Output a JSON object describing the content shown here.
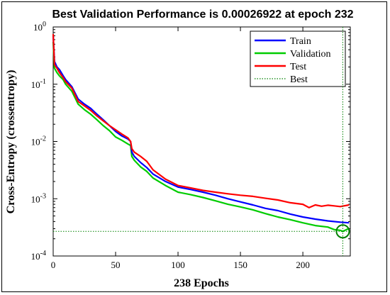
{
  "chart_data": {
    "type": "line",
    "title": "Best Validation Performance is 0.00026922 at epoch 232",
    "xlabel": "238 Epochs",
    "ylabel": "Cross-Entropy  (crossentropy)",
    "xlim": [
      0,
      238
    ],
    "ylim": [
      0.0001,
      1
    ],
    "yscale": "log",
    "grid": false,
    "legend_position": "top-right",
    "x_ticks": [
      {
        "value": 0,
        "label": "0"
      },
      {
        "value": 50,
        "label": "50"
      },
      {
        "value": 100,
        "label": "100"
      },
      {
        "value": 150,
        "label": "150"
      },
      {
        "value": 200,
        "label": "200"
      }
    ],
    "y_ticks": [
      {
        "value": 0.0001,
        "base": "10",
        "exp": "-4"
      },
      {
        "value": 0.001,
        "base": "10",
        "exp": "-3"
      },
      {
        "value": 0.01,
        "base": "10",
        "exp": "-2"
      },
      {
        "value": 0.1,
        "base": "10",
        "exp": "-1"
      },
      {
        "value": 1,
        "base": "10",
        "exp": "0"
      }
    ],
    "series": [
      {
        "name": "Train",
        "color": "#0000ff",
        "x": [
          0,
          1,
          3,
          5,
          8,
          10,
          15,
          20,
          25,
          30,
          35,
          40,
          45,
          50,
          55,
          60,
          62,
          63,
          65,
          70,
          75,
          80,
          90,
          100,
          110,
          120,
          130,
          140,
          150,
          160,
          170,
          180,
          190,
          200,
          210,
          220,
          230,
          237
        ],
        "y": [
          0.7,
          0.25,
          0.2,
          0.18,
          0.14,
          0.12,
          0.09,
          0.055,
          0.045,
          0.038,
          0.03,
          0.024,
          0.019,
          0.015,
          0.0125,
          0.011,
          0.01,
          0.0065,
          0.0055,
          0.0043,
          0.0035,
          0.0027,
          0.002,
          0.0016,
          0.00145,
          0.0013,
          0.00115,
          0.001,
          0.00088,
          0.00078,
          0.00068,
          0.00062,
          0.00054,
          0.00048,
          0.00044,
          0.00041,
          0.00039,
          0.00038
        ]
      },
      {
        "name": "Validation",
        "color": "#00cc00",
        "x": [
          0,
          1,
          3,
          5,
          8,
          10,
          15,
          20,
          25,
          30,
          35,
          40,
          45,
          50,
          55,
          60,
          62,
          63,
          65,
          70,
          75,
          80,
          90,
          100,
          110,
          120,
          130,
          140,
          150,
          160,
          170,
          180,
          190,
          200,
          210,
          220,
          225,
          230,
          232,
          235,
          237
        ],
        "y": [
          0.55,
          0.19,
          0.16,
          0.14,
          0.12,
          0.1,
          0.075,
          0.045,
          0.036,
          0.03,
          0.024,
          0.019,
          0.0155,
          0.012,
          0.0105,
          0.009,
          0.0085,
          0.0055,
          0.0047,
          0.0036,
          0.003,
          0.0023,
          0.0017,
          0.0013,
          0.00118,
          0.00105,
          0.00092,
          0.0008,
          0.00072,
          0.00064,
          0.00055,
          0.00048,
          0.00043,
          0.00038,
          0.00034,
          0.00032,
          0.00029,
          0.00028,
          0.000269,
          0.00029,
          0.0003
        ]
      },
      {
        "name": "Test",
        "color": "#ff0000",
        "x": [
          0,
          1,
          3,
          5,
          8,
          10,
          15,
          20,
          25,
          30,
          35,
          40,
          45,
          50,
          55,
          60,
          62,
          63,
          65,
          70,
          75,
          80,
          90,
          100,
          110,
          120,
          130,
          140,
          150,
          160,
          170,
          180,
          190,
          200,
          205,
          210,
          215,
          220,
          225,
          230,
          237
        ],
        "y": [
          0.75,
          0.22,
          0.19,
          0.16,
          0.13,
          0.11,
          0.085,
          0.05,
          0.042,
          0.035,
          0.028,
          0.023,
          0.019,
          0.016,
          0.0135,
          0.0115,
          0.01,
          0.0075,
          0.0065,
          0.0055,
          0.0045,
          0.0032,
          0.0022,
          0.0017,
          0.00155,
          0.0014,
          0.0013,
          0.00122,
          0.00115,
          0.0011,
          0.00102,
          0.00095,
          0.00085,
          0.0008,
          0.0007,
          0.00078,
          0.00074,
          0.00077,
          0.00075,
          0.00073,
          0.00078
        ]
      }
    ],
    "best": {
      "name": "Best",
      "color": "#008000",
      "epoch": 232,
      "value": 0.00026922
    }
  }
}
